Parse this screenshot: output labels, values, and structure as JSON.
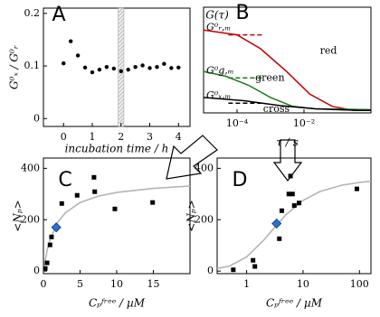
{
  "chart_data": [
    {
      "type": "scatter",
      "label": "A",
      "marker": "circle",
      "color": "#000000",
      "xlabel": "incubation time / h",
      "ylabel": "G⁰ₓ / G⁰ᵣ",
      "xlim": [
        -0.7,
        4.4
      ],
      "xticks": [
        0,
        1,
        2,
        3,
        4
      ],
      "ylim": [
        -0.015,
        0.21
      ],
      "yticks": [
        0,
        0.1,
        0.2
      ],
      "highlight_x": [
        1.9,
        2.1
      ],
      "x": [
        0,
        0.25,
        0.5,
        0.75,
        1,
        1.25,
        1.5,
        1.75,
        2,
        2.25,
        2.5,
        2.75,
        3,
        3.25,
        3.5,
        3.75,
        4
      ],
      "values": [
        0.105,
        0.147,
        0.12,
        0.097,
        0.088,
        0.093,
        0.098,
        0.095,
        0.09,
        0.093,
        0.098,
        0.101,
        0.096,
        0.098,
        0.104,
        0.096,
        0.097
      ]
    },
    {
      "type": "line",
      "label": "B",
      "log": "x",
      "xlabel": "τ / s",
      "ylabel": "G(τ)",
      "xlim": [
        1e-05,
        1
      ],
      "xticks": [
        {
          "value": 0.0001,
          "label": "10⁻⁴"
        },
        {
          "value": 0.01,
          "label": "10⁻²"
        }
      ],
      "ylim": [
        0,
        1.3
      ],
      "yticks": [],
      "series": [
        {
          "name": "red",
          "color": "#c00000",
          "amplitude": 0.96,
          "amplitude_label": "G⁰ᵣ,ₘ",
          "x": [
            1e-05,
            0.0001,
            0.0005,
            0.003,
            0.015,
            0.07,
            0.3,
            1
          ],
          "values": [
            1.02,
            0.96,
            0.79,
            0.51,
            0.23,
            0.08,
            0.03,
            0.03
          ]
        },
        {
          "name": "green",
          "color": "#1a7a1a",
          "amplitude": 0.43,
          "amplitude_label": "G⁰g,ₘ",
          "x": [
            1e-05,
            4.7e-05,
            0.00022,
            0.001,
            0.0046,
            0.022,
            1
          ],
          "values": [
            0.51,
            0.45,
            0.34,
            0.19,
            0.08,
            0.05,
            0.04
          ]
        },
        {
          "name": "cross",
          "color": "#000000",
          "amplitude": 0.12,
          "amplitude_label": "G⁰ₓ,ₘ",
          "x": [
            1e-05,
            0.00016,
            0.0019,
            0.022,
            0.47,
            1
          ],
          "values": [
            0.19,
            0.15,
            0.09,
            0.05,
            0.03,
            0.03
          ]
        }
      ]
    },
    {
      "type": "scatter",
      "label": "C",
      "marker": "square",
      "color": "#000000",
      "xlabel": "Cₚᶠʳᵉᵉ / µM",
      "ylabel": "<Nₚ>",
      "xlim": [
        0,
        20
      ],
      "xticks": [
        0,
        5,
        10,
        15
      ],
      "ylim": [
        -10,
        440
      ],
      "yticks": [
        0,
        200,
        400
      ],
      "x": [
        0.25,
        0.5,
        0.9,
        1.1,
        2.5,
        4.6,
        6.9,
        7.0,
        9.75,
        14.9
      ],
      "values": [
        10,
        32,
        102,
        133,
        263,
        295,
        365,
        309,
        242,
        267
      ],
      "highlight_point": {
        "x": 1.75,
        "value": 170,
        "color": "#2a6fd0"
      },
      "fit": {
        "color": "#b4b4b4",
        "x": [
          0,
          0.5,
          1,
          2,
          3,
          5,
          7.5,
          10,
          15,
          20
        ],
        "values": [
          0,
          80,
          131,
          192,
          227,
          267,
          292,
          306,
          322,
          331
        ]
      }
    },
    {
      "type": "scatter",
      "label": "D",
      "marker": "square",
      "log": "x",
      "color": "#000000",
      "xlabel": "Cₚᶠʳᵉᵉ / µM",
      "ylabel": "<Nₚ>",
      "xlim": [
        0.3,
        160
      ],
      "xticks": [
        1,
        10,
        100
      ],
      "ylim": [
        -10,
        440
      ],
      "yticks": [
        0,
        200,
        400
      ],
      "x": [
        0.58,
        1.3,
        1.4,
        3.8,
        4.2,
        5.6,
        6.0,
        6.5,
        7.0,
        8.5,
        90
      ],
      "values": [
        5,
        42,
        18,
        126,
        235,
        300,
        370,
        300,
        255,
        265,
        320
      ],
      "highlight_point": {
        "x": 3.4,
        "value": 185,
        "color": "#2a6fd0"
      },
      "fit": {
        "color": "#b4b4b4",
        "x": [
          0.3,
          0.5,
          1,
          2,
          3,
          5,
          10,
          20,
          50,
          100,
          160
        ],
        "values": [
          10,
          20,
          55,
          120,
          165,
          220,
          275,
          310,
          335,
          345,
          350
        ]
      }
    }
  ]
}
